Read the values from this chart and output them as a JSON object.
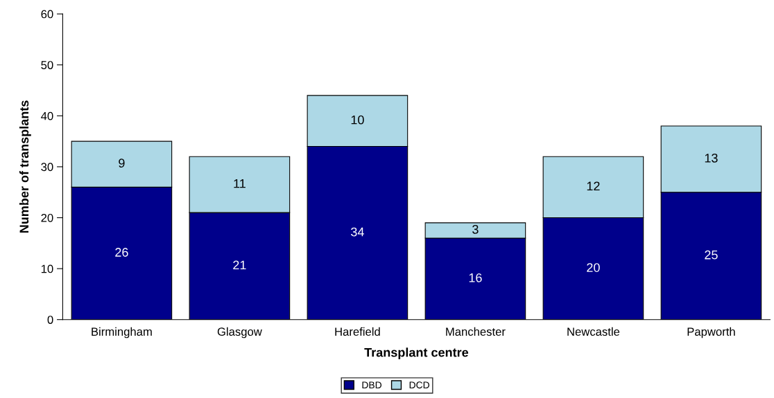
{
  "chart_data": {
    "type": "bar",
    "stacked": true,
    "xlabel": "Transplant centre",
    "ylabel": "Number of transplants",
    "categories": [
      "Birmingham",
      "Glasgow",
      "Harefield",
      "Manchester",
      "Newcastle",
      "Papworth"
    ],
    "series": [
      {
        "name": "DBD",
        "color": "#00008b",
        "values": [
          26,
          21,
          34,
          16,
          20,
          25
        ]
      },
      {
        "name": "DCD",
        "color": "#add8e6",
        "values": [
          9,
          11,
          10,
          3,
          12,
          13
        ]
      }
    ],
    "ylim": [
      0,
      60
    ],
    "yticks": [
      0,
      10,
      20,
      30,
      40,
      50,
      60
    ],
    "grid": false,
    "legend": "bottom",
    "data_labels": true
  }
}
